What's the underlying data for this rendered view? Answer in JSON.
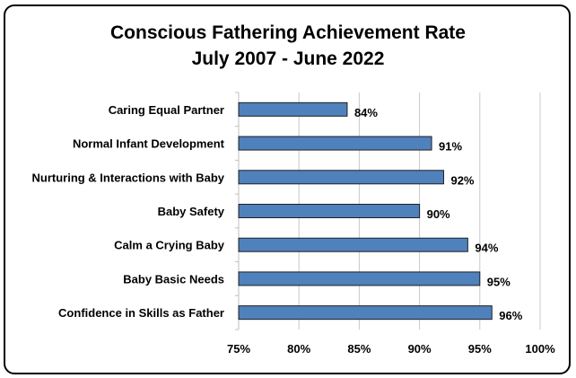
{
  "chart_data": {
    "type": "bar",
    "orientation": "horizontal",
    "title": "Conscious Fathering Achievement Rate",
    "subtitle": "July 2007 - June 2022",
    "categories": [
      "Caring Equal Partner",
      "Normal Infant Development",
      "Nurturing & Interactions with Baby",
      "Baby Safety",
      "Calm a Crying Baby",
      "Baby Basic Needs",
      "Confidence in Skills as Father"
    ],
    "values": [
      84,
      91,
      92,
      90,
      94,
      95,
      96
    ],
    "value_labels": [
      "84%",
      "91%",
      "92%",
      "90%",
      "94%",
      "95%",
      "96%"
    ],
    "xlim": [
      75,
      100
    ],
    "x_ticks": [
      75,
      80,
      85,
      90,
      95,
      100
    ],
    "x_tick_labels": [
      "75%",
      "80%",
      "85%",
      "90%",
      "95%",
      "100%"
    ],
    "grid": true,
    "bar_color": "#4F81BD",
    "bar_edge_color": "#1F1F1F"
  }
}
